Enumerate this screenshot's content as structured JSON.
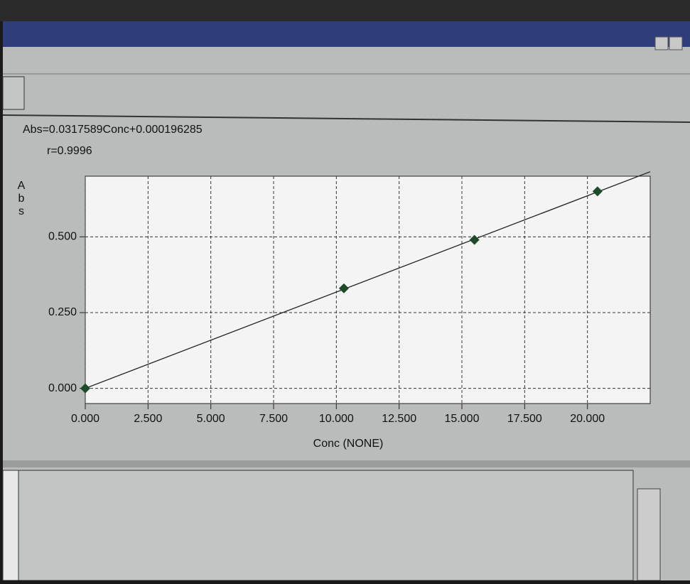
{
  "chart_data": {
    "type": "scatter",
    "equation": "Abs=0.0317589Conc+0.000196285",
    "r_label": "r=0.9996",
    "y_label": "A\nb\ns",
    "x_label": "Conc (NONE)",
    "x": [
      0,
      10.3,
      15.5,
      20.4
    ],
    "values": [
      0,
      0.33,
      0.49,
      0.65
    ],
    "color": "#1e4a2a",
    "regression": {
      "slope": 0.0317589,
      "intercept": 0.000196285
    },
    "xlim": [
      0,
      22.5
    ],
    "ylim": [
      -0.05,
      0.7
    ],
    "xticks": [
      {
        "value": 0,
        "label": "0.000"
      },
      {
        "value": 2.5,
        "label": "2.500"
      },
      {
        "value": 5,
        "label": "5.000"
      },
      {
        "value": 7.5,
        "label": "7.500"
      },
      {
        "value": 10,
        "label": "10.000"
      },
      {
        "value": 12.5,
        "label": "12.500"
      },
      {
        "value": 15,
        "label": "15.000"
      },
      {
        "value": 17.5,
        "label": "17.500"
      },
      {
        "value": 20,
        "label": "20.000"
      }
    ],
    "yticks": [
      {
        "value": 0,
        "label": "0.000"
      },
      {
        "value": 0.25,
        "label": "0.250"
      },
      {
        "value": 0.5,
        "label": "0.500"
      }
    ],
    "grid": true
  }
}
